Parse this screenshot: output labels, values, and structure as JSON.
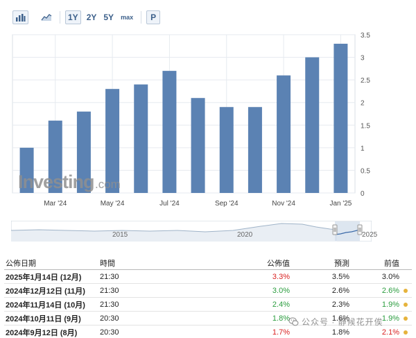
{
  "toolbar": {
    "icons": [
      "bar-chart-icon",
      "area-chart-icon"
    ],
    "ranges": [
      {
        "label": "1Y",
        "active": true
      },
      {
        "label": "2Y",
        "active": false
      },
      {
        "label": "5Y",
        "active": false
      },
      {
        "label": "max",
        "active": false
      }
    ],
    "print_label": "P"
  },
  "brand": {
    "name": "Investing",
    "suffix": ".com"
  },
  "chart_data": {
    "type": "bar",
    "categories": [
      "Feb '24",
      "Mar '24",
      "Apr '24",
      "May '24",
      "Jun '24",
      "Jul '24",
      "Aug '24",
      "Sep '24",
      "Oct '24",
      "Nov '24",
      "Dec '24",
      "Jan '25"
    ],
    "values": [
      1.0,
      1.6,
      1.8,
      2.3,
      2.4,
      2.7,
      2.1,
      1.9,
      1.9,
      2.6,
      3.0,
      3.3
    ],
    "x_tick_labels": [
      "Mar '24",
      "May '24",
      "Jul '24",
      "Sep '24",
      "Nov '24",
      "Jan '25"
    ],
    "x_tick_indices": [
      1,
      3,
      5,
      7,
      9,
      11
    ],
    "y_ticks": [
      0,
      0.5,
      1,
      1.5,
      2,
      2.5,
      3,
      3.5
    ],
    "y_tick_labels": [
      "0",
      "0.5",
      "1",
      "1.5",
      "2",
      "2.5",
      "3",
      "3.5"
    ],
    "ylim": [
      0,
      3.5
    ],
    "title": "",
    "xlabel": "",
    "ylabel": "",
    "bar_color": "#5b82b3",
    "grid": true
  },
  "navigator": {
    "labels": [
      "2015",
      "2020",
      "2025"
    ]
  },
  "table": {
    "headers": {
      "date": "公佈日期",
      "time": "時間",
      "actual": "公佈值",
      "forecast": "預測",
      "previous": "前值"
    },
    "rows": [
      {
        "date": "2025年1月14日 (12月)",
        "time": "21:30",
        "actual": "3.3%",
        "actual_color": "red",
        "forecast": "3.5%",
        "previous": "3.0%",
        "previous_color": "blk",
        "dot": false
      },
      {
        "date": "2024年12月12日 (11月)",
        "time": "21:30",
        "actual": "3.0%",
        "actual_color": "green",
        "forecast": "2.6%",
        "previous": "2.6%",
        "previous_color": "green",
        "dot": true
      },
      {
        "date": "2024年11月14日 (10月)",
        "time": "21:30",
        "actual": "2.4%",
        "actual_color": "green",
        "forecast": "2.3%",
        "previous": "1.9%",
        "previous_color": "green",
        "dot": true
      },
      {
        "date": "2024年10月11日 (9月)",
        "time": "20:30",
        "actual": "1.8%",
        "actual_color": "green",
        "forecast": "1.6%",
        "previous": "1.9%",
        "previous_color": "green",
        "dot": true
      },
      {
        "date": "2024年9月12日 (8月)",
        "time": "20:30",
        "actual": "1.7%",
        "actual_color": "red",
        "forecast": "1.8%",
        "previous": "2.1%",
        "previous_color": "red",
        "dot": true
      }
    ]
  },
  "watermark": {
    "text": "公众号 · 静候花开俟"
  }
}
